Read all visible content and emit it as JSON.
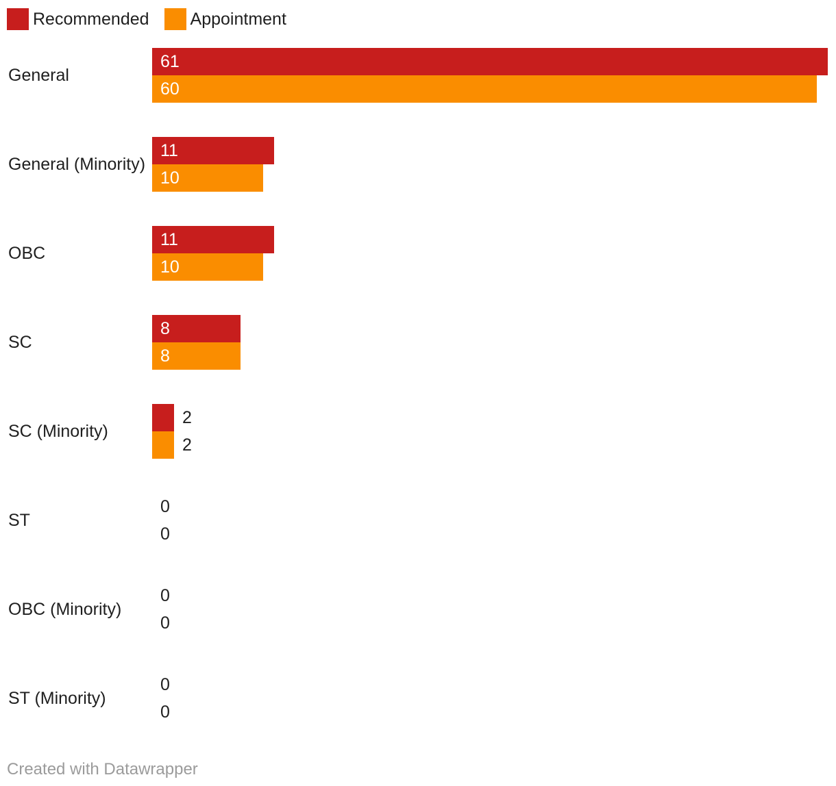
{
  "chart_data": {
    "type": "bar",
    "orientation": "horizontal",
    "title": "",
    "xlabel": "",
    "ylabel": "",
    "categories": [
      "General",
      "General (Minority)",
      "OBC",
      "SC",
      "SC (Minority)",
      "ST",
      "OBC (Minority)",
      "ST (Minority)"
    ],
    "series": [
      {
        "name": "Recommended",
        "color": "#c71e1d",
        "values": [
          61,
          11,
          11,
          8,
          2,
          0,
          0,
          0
        ]
      },
      {
        "name": "Appointment",
        "color": "#fa8d00",
        "values": [
          60,
          10,
          10,
          8,
          2,
          0,
          0,
          0
        ]
      }
    ],
    "xlim": [
      0,
      61
    ],
    "grid": false,
    "legend_position": "top",
    "value_labels": "shown at bar start; white inside bars, dark outside for small or zero bars"
  },
  "colors": {
    "recommended": "#c71e1d",
    "appointment": "#fa8d00",
    "text": "#1f1f1f",
    "value_label_inside": "#ffffff",
    "credit": "#9b9b9b",
    "background": "#ffffff"
  },
  "footer": {
    "credit": "Created with Datawrapper"
  }
}
